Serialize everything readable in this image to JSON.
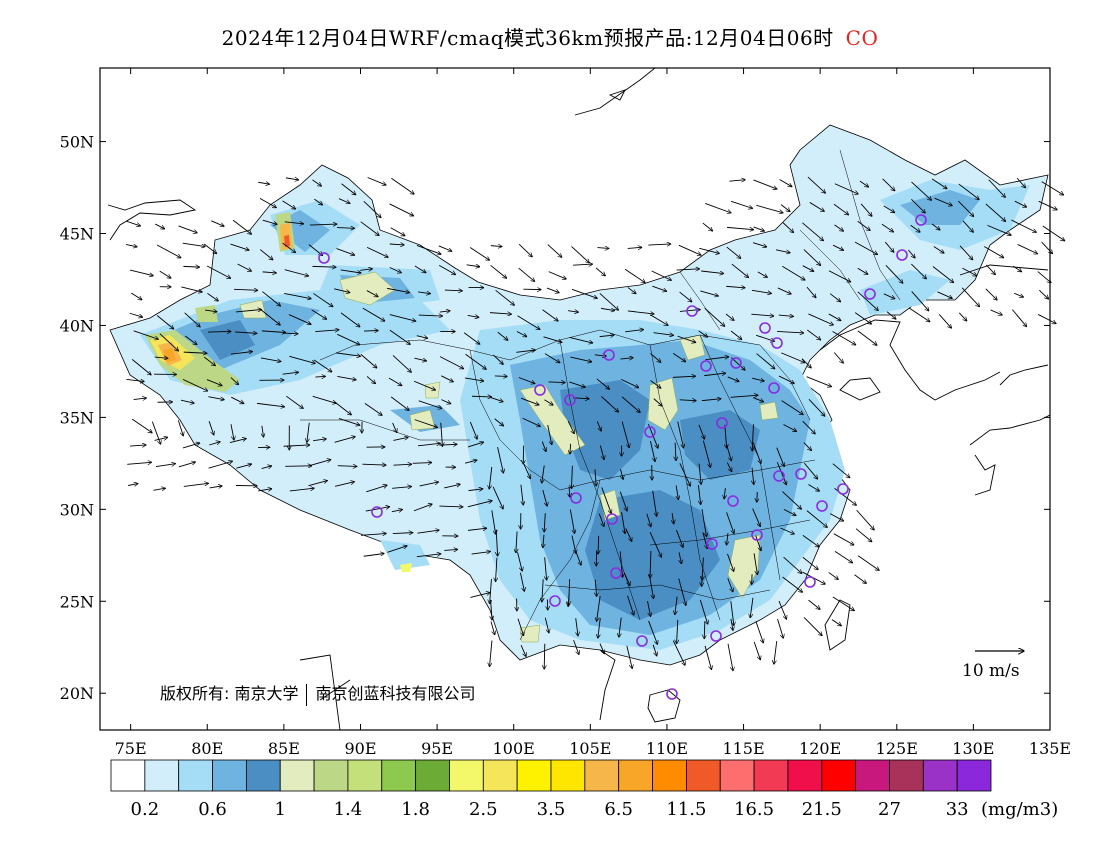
{
  "title": {
    "text": "2024年12月04日WRF/cmaq模式36km预报产品:12月04日06时",
    "species": "CO",
    "species_color": "#e8231d"
  },
  "map": {
    "lon_range": [
      73,
      135
    ],
    "lat_range": [
      18,
      54
    ],
    "lat_ticks": [
      "20N",
      "25N",
      "30N",
      "35N",
      "40N",
      "45N",
      "50N"
    ],
    "lon_ticks": [
      "75E",
      "80E",
      "85E",
      "90E",
      "95E",
      "100E",
      "105E",
      "110E",
      "115E",
      "120E",
      "125E",
      "130E",
      "135E"
    ]
  },
  "colorbar": {
    "colors": [
      "#ffffff",
      "#d3eefb",
      "#a5dcf6",
      "#6fb3e0",
      "#4a8ec4",
      "#e3ecbf",
      "#bcd886",
      "#c4e07a",
      "#8cc94e",
      "#6cab36",
      "#f3f76a",
      "#f4e55a",
      "#fff200",
      "#ffe600",
      "#f6b64a",
      "#f8a628",
      "#ff8c00",
      "#f05a28",
      "#ff6e6e",
      "#f23a55",
      "#f00f4b",
      "#ff0000",
      "#c8177d",
      "#a8325a",
      "#9b32c8",
      "#8c28dc"
    ],
    "labels": [
      "0.2",
      "0.6",
      "1",
      "1.4",
      "1.8",
      "2.5",
      "3.5",
      "6.5",
      "11.5",
      "16.5",
      "21.5",
      "27",
      "33"
    ],
    "unit": "(mg/m3)"
  },
  "wind_reference": "10 m/s",
  "copyright": {
    "left": "版权所有: 南京大学",
    "right": "南京创蓝科技有限公司"
  },
  "station_color": "#8a2be2"
}
